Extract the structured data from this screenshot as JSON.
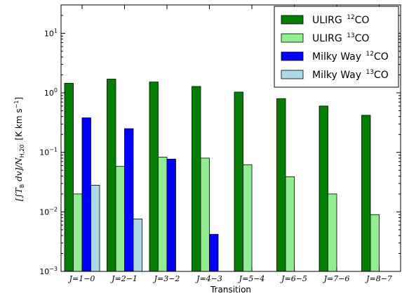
{
  "chart_data": {
    "type": "bar",
    "yscale": "log",
    "ylim": [
      0.001,
      30
    ],
    "xlabel": "Transition",
    "ylabel_main": "[∫T",
    "ylabel_sub": "B",
    "ylabel_mid": " dv]/N",
    "ylabel_sub2": "H,20",
    "ylabel_unit": "[K km s",
    "ylabel_unit_sup": "−1",
    "ylabel_unit_end": "]",
    "categories": [
      "J=1−0",
      "J=2−1",
      "J=3−2",
      "J=4−3",
      "J=5−4",
      "J=6−5",
      "J=7−6",
      "J=8−7"
    ],
    "y_ticks": [
      {
        "base": "10",
        "exp": "1",
        "value": 10
      },
      {
        "base": "10",
        "exp": "0",
        "value": 1
      },
      {
        "base": "10",
        "exp": "−1",
        "value": 0.1
      },
      {
        "base": "10",
        "exp": "−2",
        "value": 0.01
      },
      {
        "base": "10",
        "exp": "−3",
        "value": 0.001
      }
    ],
    "series": [
      {
        "name": "ULIRG ",
        "iso": "12",
        "mol": "CO",
        "color": "#007f00",
        "values": [
          1.45,
          1.7,
          1.52,
          1.28,
          1.03,
          0.8,
          0.6,
          0.42
        ]
      },
      {
        "name": "ULIRG ",
        "iso": "13",
        "mol": "CO",
        "color": "#90ee90",
        "values": [
          0.02,
          0.058,
          0.083,
          0.08,
          0.062,
          0.039,
          0.02,
          0.009
        ]
      },
      {
        "name": "Milky Way ",
        "iso": "12",
        "mol": "CO",
        "color": "#0000ff",
        "values": [
          0.38,
          0.25,
          0.077,
          0.0042,
          null,
          null,
          null,
          null
        ]
      },
      {
        "name": "Milky Way ",
        "iso": "13",
        "mol": "CO",
        "color": "#add8e6",
        "values": [
          0.028,
          0.0076,
          null,
          null,
          null,
          null,
          null,
          null
        ]
      }
    ],
    "legend_position": "top-right",
    "grid": false
  }
}
